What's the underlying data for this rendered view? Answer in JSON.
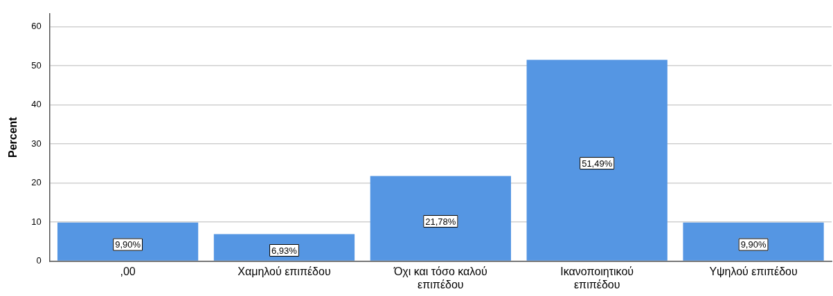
{
  "chart_data": {
    "type": "bar",
    "ylabel": "Percent",
    "categories": [
      ",00",
      "Χαμηλού επιπέδου",
      "Όχι και τόσο καλού επιπέδου",
      "Ικανοποιητικού επιπέδου",
      "Υψηλού επιπέδου"
    ],
    "values": [
      9.9,
      6.93,
      21.78,
      51.49,
      9.9
    ],
    "value_labels": [
      "9,90%",
      "6,93%",
      "21,78%",
      "51,49%",
      "9,90%"
    ],
    "color": "#5596e3",
    "ylim": [
      0,
      63.3
    ],
    "yticks": [
      0,
      10,
      20,
      30,
      40,
      50,
      60
    ],
    "grid": "y",
    "legend": false
  }
}
